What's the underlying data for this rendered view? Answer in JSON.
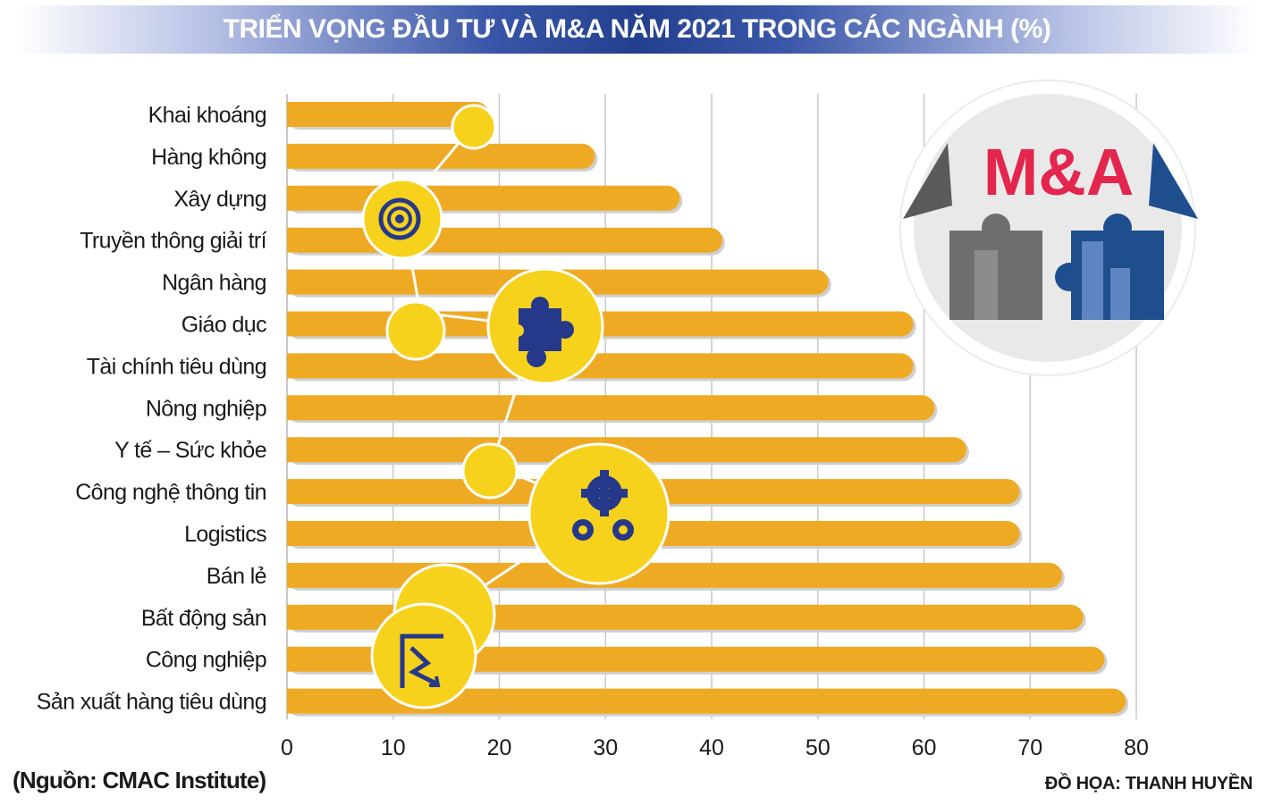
{
  "title": "TRIỂN VỌNG ĐẦU TƯ VÀ M&A NĂM 2021 TRONG CÁC NGÀNH (%)",
  "source": "(Nguồn: CMAC Institute)",
  "credit": "ĐỒ HỌA: THANH HUYỀN",
  "logo_text": "M&A",
  "colors": {
    "bar": "#EFAA24",
    "bar_shadow": "#cfcfcf",
    "grid": "#c8c8c8",
    "icon": "#26388a",
    "logo_red": "#e3264e"
  },
  "chart_data": {
    "type": "bar",
    "orientation": "horizontal",
    "title": "TRIỂN VỌNG ĐẦU TƯ VÀ M&A NĂM 2021 TRONG CÁC NGÀNH (%)",
    "categories": [
      "Khai khoáng",
      "Hàng không",
      "Xây dựng",
      "Truyền thông giải trí",
      "Ngân hàng",
      "Giáo dục",
      "Tài chính tiêu dùng",
      "Nông nghiệp",
      "Y tế – Sức khỏe",
      "Công nghệ thông tin",
      "Logistics",
      "Bán lẻ",
      "Bất động sản",
      "Công nghiệp",
      "Sản xuất hàng tiêu dùng"
    ],
    "values": [
      19,
      29,
      37,
      41,
      51,
      59,
      59,
      61,
      64,
      69,
      69,
      73,
      75,
      77,
      79
    ],
    "xlim": [
      0,
      80
    ],
    "xticks": [
      0,
      10,
      20,
      30,
      40,
      50,
      60,
      70,
      80
    ],
    "grid": true
  }
}
